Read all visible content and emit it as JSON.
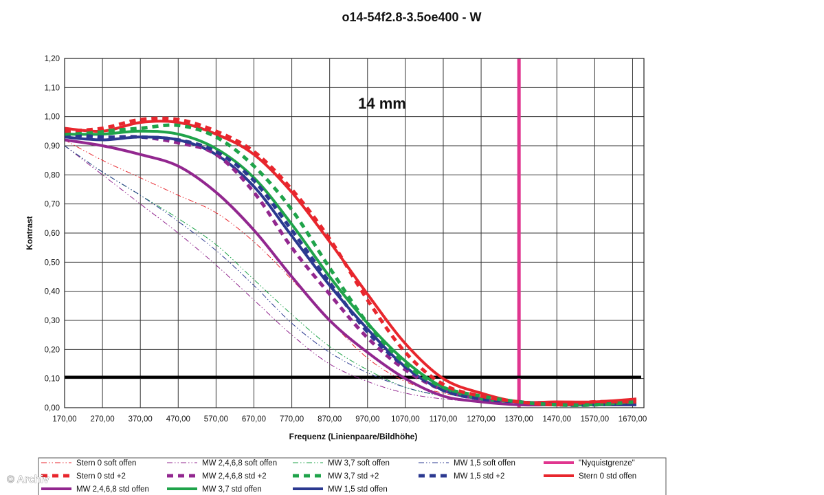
{
  "watermark": "© Archiv",
  "chart_data": {
    "type": "line",
    "title": "o14-54f2.8-3.5oe400 - W",
    "annotation": "14 mm",
    "xlabel": "Frequenz (Linienpaare/Bildhöhe)",
    "ylabel": "Kontrast",
    "xlim": [
      170,
      1700
    ],
    "ylim": [
      0,
      1.2
    ],
    "x_ticks": [
      "170,00",
      "270,00",
      "370,00",
      "470,00",
      "570,00",
      "670,00",
      "770,00",
      "870,00",
      "970,00",
      "1070,00",
      "1170,00",
      "1270,00",
      "1370,00",
      "1470,00",
      "1570,00",
      "1670,00"
    ],
    "y_ticks": [
      "0,00",
      "0,10",
      "0,20",
      "0,30",
      "0,40",
      "0,50",
      "0,60",
      "0,70",
      "0,80",
      "0,90",
      "1,00",
      "1,10",
      "1,20"
    ],
    "grid": true,
    "legend_position": "bottom",
    "reference_lines": [
      {
        "name": "\"Nyquistgrenze\"",
        "orientation": "vertical",
        "value": 1370,
        "color": "#e0358f"
      },
      {
        "name": "",
        "orientation": "horizontal",
        "value": 0.105,
        "color": "#000000"
      }
    ],
    "series": [
      {
        "name": "Stern 0 soft offen",
        "color": "#e8262d",
        "style": "dashdotdot",
        "width": 1,
        "x": [
          170,
          270,
          370,
          470,
          570,
          670,
          770,
          870,
          970,
          1070,
          1170,
          1270,
          1370,
          1470,
          1570,
          1680
        ],
        "y": [
          0.92,
          0.85,
          0.79,
          0.73,
          0.67,
          0.57,
          0.44,
          0.3,
          0.17,
          0.09,
          0.05,
          0.03,
          0.02,
          0.01,
          0.01,
          0.01
        ]
      },
      {
        "name": "MW 2,4,6,8 soft offen",
        "color": "#92278f",
        "style": "dashdotdot",
        "width": 1,
        "x": [
          170,
          270,
          370,
          470,
          570,
          670,
          770,
          870,
          970,
          1070,
          1170,
          1270,
          1370,
          1470,
          1570,
          1680
        ],
        "y": [
          0.9,
          0.8,
          0.7,
          0.6,
          0.49,
          0.37,
          0.25,
          0.15,
          0.09,
          0.05,
          0.03,
          0.02,
          0.01,
          0.01,
          0.01,
          0.01
        ]
      },
      {
        "name": "MW 3,7 soft offen",
        "color": "#1fa34a",
        "style": "dashdotdot",
        "width": 1,
        "x": [
          170,
          270,
          370,
          470,
          570,
          670,
          770,
          870,
          970,
          1070,
          1170,
          1270,
          1370,
          1470,
          1570,
          1680
        ],
        "y": [
          0.9,
          0.81,
          0.73,
          0.65,
          0.56,
          0.44,
          0.32,
          0.21,
          0.13,
          0.07,
          0.04,
          0.02,
          0.01,
          0.01,
          0.01,
          0.01
        ]
      },
      {
        "name": "MW 1,5 soft offen",
        "color": "#2b3990",
        "style": "dashdotdot",
        "width": 1,
        "x": [
          170,
          270,
          370,
          470,
          570,
          670,
          770,
          870,
          970,
          1070,
          1170,
          1270,
          1370,
          1470,
          1570,
          1680
        ],
        "y": [
          0.9,
          0.81,
          0.73,
          0.64,
          0.54,
          0.42,
          0.29,
          0.19,
          0.12,
          0.07,
          0.04,
          0.02,
          0.01,
          0.01,
          0.01,
          0.01
        ]
      },
      {
        "name": "Stern 0 std +2",
        "color": "#e8262d",
        "style": "dashed",
        "width": 5,
        "x": [
          170,
          270,
          370,
          470,
          570,
          670,
          770,
          870,
          970,
          1070,
          1170,
          1270,
          1370,
          1470,
          1570,
          1680
        ],
        "y": [
          0.95,
          0.96,
          0.99,
          0.99,
          0.95,
          0.88,
          0.75,
          0.58,
          0.37,
          0.19,
          0.08,
          0.04,
          0.02,
          0.01,
          0.02,
          0.02
        ]
      },
      {
        "name": "MW 2,4,6,8 std +2",
        "color": "#92278f",
        "style": "dashed",
        "width": 5,
        "x": [
          170,
          270,
          370,
          470,
          570,
          670,
          770,
          870,
          970,
          1070,
          1170,
          1270,
          1370,
          1470,
          1570,
          1680
        ],
        "y": [
          0.94,
          0.93,
          0.93,
          0.91,
          0.87,
          0.74,
          0.55,
          0.39,
          0.24,
          0.13,
          0.06,
          0.03,
          0.02,
          0.01,
          0.01,
          0.02
        ]
      },
      {
        "name": "MW 3,7 std +2",
        "color": "#1fa34a",
        "style": "dashed",
        "width": 5,
        "x": [
          170,
          270,
          370,
          470,
          570,
          670,
          770,
          870,
          970,
          1070,
          1170,
          1270,
          1370,
          1470,
          1570,
          1680
        ],
        "y": [
          0.94,
          0.95,
          0.96,
          0.97,
          0.93,
          0.83,
          0.68,
          0.48,
          0.29,
          0.15,
          0.07,
          0.04,
          0.02,
          0.01,
          0.01,
          0.02
        ]
      },
      {
        "name": "MW 1,5 std +2",
        "color": "#2b3990",
        "style": "dashed",
        "width": 5,
        "x": [
          170,
          270,
          370,
          470,
          570,
          670,
          770,
          870,
          970,
          1070,
          1170,
          1270,
          1370,
          1470,
          1570,
          1680
        ],
        "y": [
          0.94,
          0.93,
          0.93,
          0.92,
          0.88,
          0.78,
          0.61,
          0.43,
          0.26,
          0.14,
          0.06,
          0.03,
          0.02,
          0.01,
          0.01,
          0.02
        ]
      },
      {
        "name": "Stern 0 std offen",
        "color": "#e8262d",
        "style": "solid",
        "width": 4,
        "x": [
          170,
          270,
          370,
          470,
          570,
          670,
          770,
          870,
          970,
          1070,
          1170,
          1270,
          1370,
          1470,
          1570,
          1680
        ],
        "y": [
          0.96,
          0.95,
          0.98,
          0.98,
          0.94,
          0.87,
          0.74,
          0.57,
          0.39,
          0.22,
          0.1,
          0.05,
          0.02,
          0.02,
          0.02,
          0.03
        ]
      },
      {
        "name": "MW 2,4,6,8 std offen",
        "color": "#92278f",
        "style": "solid",
        "width": 4,
        "x": [
          170,
          270,
          370,
          470,
          570,
          670,
          770,
          870,
          970,
          1070,
          1170,
          1270,
          1370,
          1470,
          1570,
          1680
        ],
        "y": [
          0.92,
          0.9,
          0.87,
          0.83,
          0.74,
          0.61,
          0.45,
          0.3,
          0.19,
          0.1,
          0.04,
          0.02,
          0.01,
          0.01,
          0.01,
          0.01
        ]
      },
      {
        "name": "MW 3,7 std offen",
        "color": "#1fa34a",
        "style": "solid",
        "width": 4,
        "x": [
          170,
          270,
          370,
          470,
          570,
          670,
          770,
          870,
          970,
          1070,
          1170,
          1270,
          1370,
          1470,
          1570,
          1680
        ],
        "y": [
          0.94,
          0.94,
          0.95,
          0.94,
          0.89,
          0.79,
          0.63,
          0.45,
          0.29,
          0.16,
          0.07,
          0.03,
          0.02,
          0.01,
          0.01,
          0.02
        ]
      },
      {
        "name": "MW 1,5 std offen",
        "color": "#2b3990",
        "style": "solid",
        "width": 4,
        "x": [
          170,
          270,
          370,
          470,
          570,
          670,
          770,
          870,
          970,
          1070,
          1170,
          1270,
          1370,
          1470,
          1570,
          1680
        ],
        "y": [
          0.93,
          0.92,
          0.93,
          0.92,
          0.87,
          0.76,
          0.59,
          0.42,
          0.27,
          0.14,
          0.06,
          0.03,
          0.02,
          0.01,
          0.01,
          0.01
        ]
      }
    ]
  }
}
